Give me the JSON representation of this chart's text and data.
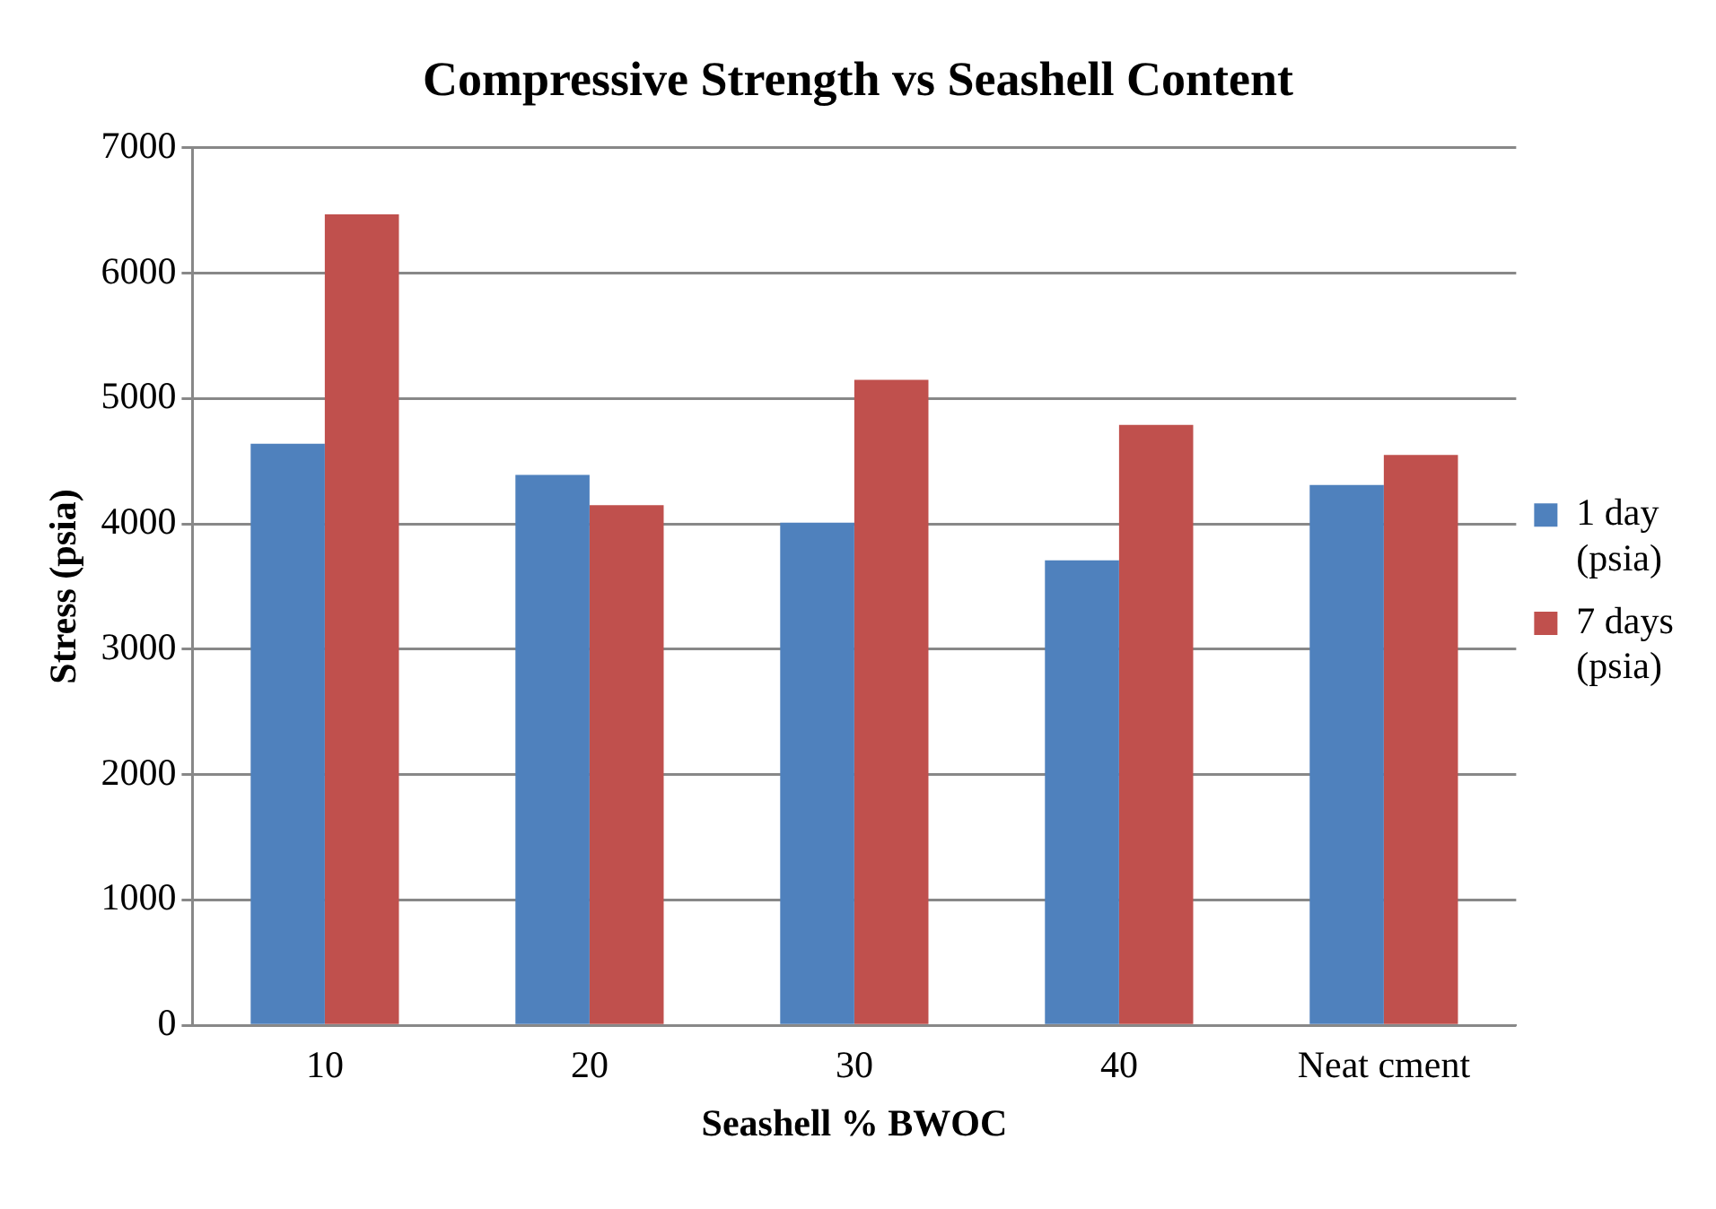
{
  "chart_data": {
    "type": "bar",
    "title": "Compressive Strength vs Seashell Content",
    "xlabel": "Seashell % BWOC",
    "ylabel": "Stress (psia)",
    "categories": [
      "10",
      "20",
      "30",
      "40",
      "Neat cment"
    ],
    "series": [
      {
        "name": "1 day (psia)",
        "color": "#4f81bd",
        "values": [
          4640,
          4390,
          4010,
          3710,
          4310
        ]
      },
      {
        "name": "7 days (psia)",
        "color": "#c0504d",
        "values": [
          6470,
          4150,
          5150,
          4790,
          4550
        ]
      }
    ],
    "ylim": [
      0,
      7000
    ],
    "yticks": [
      0,
      1000,
      2000,
      3000,
      4000,
      5000,
      6000,
      7000
    ],
    "grid": "y",
    "legend": "right"
  }
}
